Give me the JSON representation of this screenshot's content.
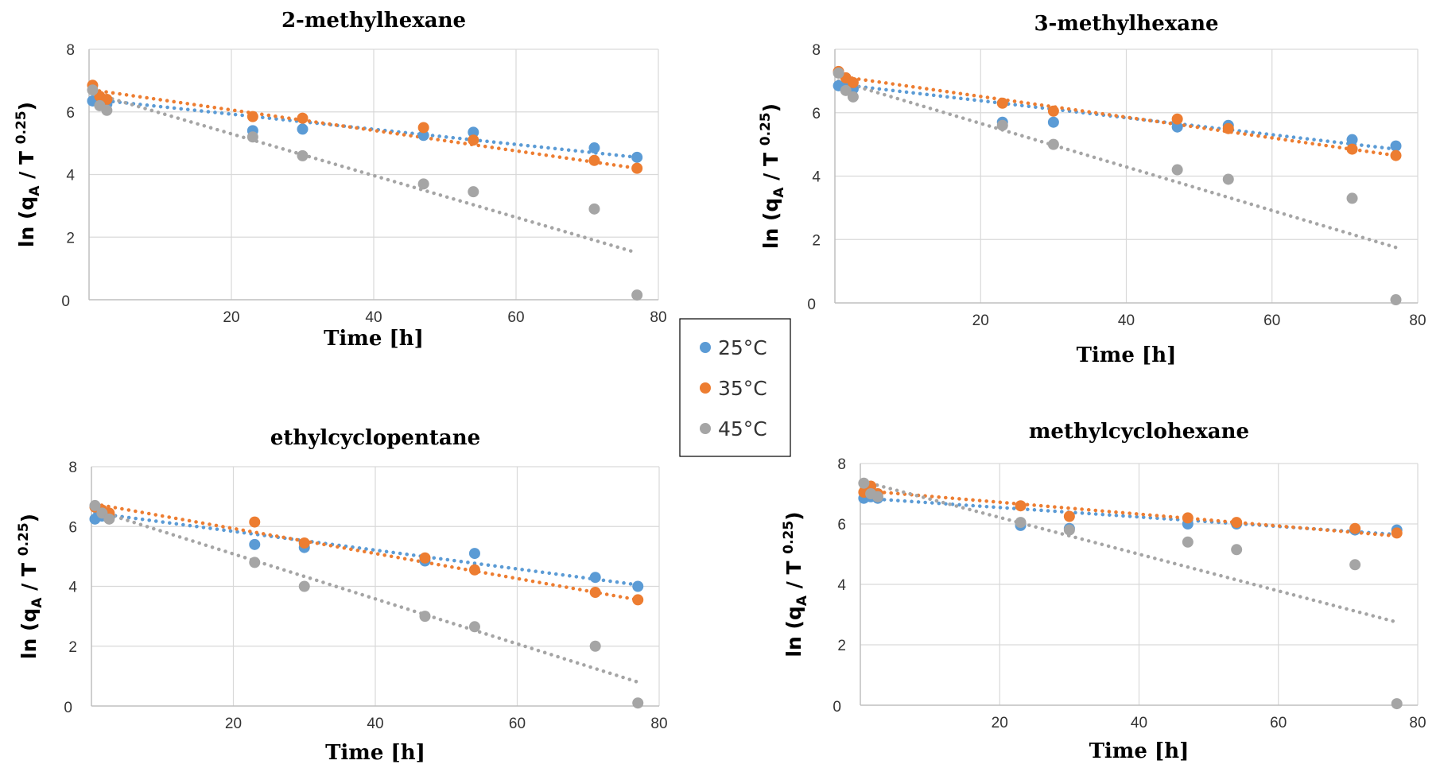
{
  "colors": {
    "s25": "#5b9bd5",
    "s35": "#ed7d31",
    "s45": "#a5a5a5",
    "grid": "#d9d9d9",
    "axis": "#bfbfbf"
  },
  "legend": {
    "entries": [
      "25°C",
      "35°C",
      "45°C"
    ]
  },
  "axis_text": {
    "ylabel_main": "ln (q",
    "ylabel_sub": "A",
    "ylabel_mid": " / T ",
    "ylabel_sup": "0.25",
    "ylabel_end": ")"
  },
  "chart_data": [
    {
      "type": "scatter",
      "title": "2-methylhexane",
      "xlabel": "Time [h]",
      "ylabel": "ln (qA / T 0.25)",
      "xlim": [
        0,
        80
      ],
      "ylim": [
        0,
        8
      ],
      "xticks": [
        20,
        40,
        60,
        80
      ],
      "yticks": [
        2,
        4,
        6,
        8
      ],
      "origin_label": "0",
      "grid": true,
      "trendlines": "linear, dotted",
      "series": [
        {
          "name": "25°C",
          "x": [
            0.5,
            1.5,
            2.5,
            23,
            30,
            47,
            54,
            71,
            77
          ],
          "y": [
            6.35,
            6.3,
            6.25,
            5.4,
            5.45,
            5.25,
            5.35,
            4.85,
            4.55
          ],
          "trend": [
            6.4,
            4.55
          ]
        },
        {
          "name": "35°C",
          "x": [
            0.5,
            1.5,
            2.5,
            23,
            30,
            47,
            54,
            71,
            77
          ],
          "y": [
            6.85,
            6.5,
            6.4,
            5.85,
            5.8,
            5.5,
            5.1,
            4.45,
            4.2
          ],
          "trend": [
            6.7,
            4.2
          ]
        },
        {
          "name": "45°C",
          "x": [
            0.5,
            1.5,
            2.5,
            23,
            30,
            47,
            54,
            71,
            77
          ],
          "y": [
            6.7,
            6.2,
            6.05,
            5.2,
            4.6,
            3.7,
            3.45,
            2.9,
            0.15
          ],
          "trend": [
            6.6,
            1.5
          ]
        }
      ]
    },
    {
      "type": "scatter",
      "title": "3-methylhexane",
      "xlabel": "Time [h]",
      "ylabel": "ln (qA / T 0.25)",
      "xlim": [
        0,
        80
      ],
      "ylim": [
        0,
        8
      ],
      "xticks": [
        20,
        40,
        60,
        80
      ],
      "yticks": [
        2,
        4,
        6,
        8
      ],
      "origin_label": "0",
      "grid": true,
      "trendlines": "linear, dotted",
      "series": [
        {
          "name": "25°C",
          "x": [
            0.5,
            1.5,
            2.5,
            23,
            30,
            47,
            54,
            71,
            77
          ],
          "y": [
            6.85,
            6.8,
            6.75,
            5.7,
            5.7,
            5.55,
            5.6,
            5.15,
            4.95
          ],
          "trend": [
            6.9,
            4.85
          ]
        },
        {
          "name": "35°C",
          "x": [
            0.5,
            1.5,
            2.5,
            23,
            30,
            47,
            54,
            71,
            77
          ],
          "y": [
            7.3,
            7.1,
            6.95,
            6.3,
            6.05,
            5.8,
            5.5,
            4.85,
            4.65
          ],
          "trend": [
            7.15,
            4.65
          ]
        },
        {
          "name": "45°C",
          "x": [
            0.5,
            1.5,
            2.5,
            23,
            30,
            47,
            54,
            71,
            77
          ],
          "y": [
            7.25,
            6.7,
            6.5,
            5.6,
            5.0,
            4.2,
            3.9,
            3.3,
            0.1
          ],
          "trend": [
            7.0,
            1.75
          ]
        }
      ]
    },
    {
      "type": "scatter",
      "title": "ethylcyclopentane",
      "xlabel": "Time [h]",
      "ylabel": "ln (qA / T 0.25)",
      "xlim": [
        0,
        80
      ],
      "ylim": [
        0,
        8
      ],
      "xticks": [
        20,
        40,
        60,
        80
      ],
      "yticks": [
        2,
        4,
        6,
        8
      ],
      "origin_label": "0",
      "grid": true,
      "trendlines": "linear, dotted",
      "series": [
        {
          "name": "25°C",
          "x": [
            0.5,
            1.5,
            2.5,
            23,
            30,
            47,
            54,
            71,
            77
          ],
          "y": [
            6.25,
            6.35,
            6.3,
            5.4,
            5.3,
            4.85,
            5.1,
            4.3,
            4.0
          ],
          "trend": [
            6.45,
            4.05
          ]
        },
        {
          "name": "35°C",
          "x": [
            0.5,
            1.5,
            2.5,
            23,
            30,
            47,
            54,
            71,
            77
          ],
          "y": [
            6.65,
            6.55,
            6.45,
            6.15,
            5.45,
            4.95,
            4.55,
            3.8,
            3.55
          ],
          "trend": [
            6.75,
            3.55
          ]
        },
        {
          "name": "45°C",
          "x": [
            0.5,
            1.5,
            2.5,
            23,
            30,
            47,
            54,
            71,
            77
          ],
          "y": [
            6.7,
            6.45,
            6.25,
            4.8,
            4.0,
            3.0,
            2.65,
            2.0,
            0.1
          ],
          "trend": [
            6.55,
            0.8
          ]
        }
      ]
    },
    {
      "type": "scatter",
      "title": "methylcyclohexane",
      "xlabel": "Time [h]",
      "ylabel": "ln (qA / T 0.25)",
      "xlim": [
        0,
        80
      ],
      "ylim": [
        0,
        8
      ],
      "xticks": [
        20,
        40,
        60,
        80
      ],
      "yticks": [
        2,
        4,
        6,
        8
      ],
      "origin_label": "0",
      "grid": true,
      "trendlines": "linear, dotted",
      "series": [
        {
          "name": "25°C",
          "x": [
            0.5,
            1.5,
            2.5,
            23,
            30,
            47,
            54,
            71,
            77
          ],
          "y": [
            6.85,
            6.9,
            6.85,
            5.95,
            5.85,
            6.0,
            6.0,
            5.8,
            5.8
          ],
          "trend": [
            6.85,
            5.65
          ]
        },
        {
          "name": "35°C",
          "x": [
            0.5,
            1.5,
            2.5,
            23,
            30,
            47,
            54,
            71,
            77
          ],
          "y": [
            7.05,
            7.25,
            7.0,
            6.6,
            6.25,
            6.2,
            6.05,
            5.85,
            5.7
          ],
          "trend": [
            7.1,
            5.6
          ]
        },
        {
          "name": "45°C",
          "x": [
            0.5,
            1.5,
            2.5,
            23,
            30,
            47,
            54,
            71,
            77
          ],
          "y": [
            7.35,
            7.0,
            6.9,
            6.05,
            5.8,
            5.4,
            5.15,
            4.65,
            0.05
          ],
          "trend": [
            7.4,
            2.75
          ]
        }
      ]
    }
  ]
}
